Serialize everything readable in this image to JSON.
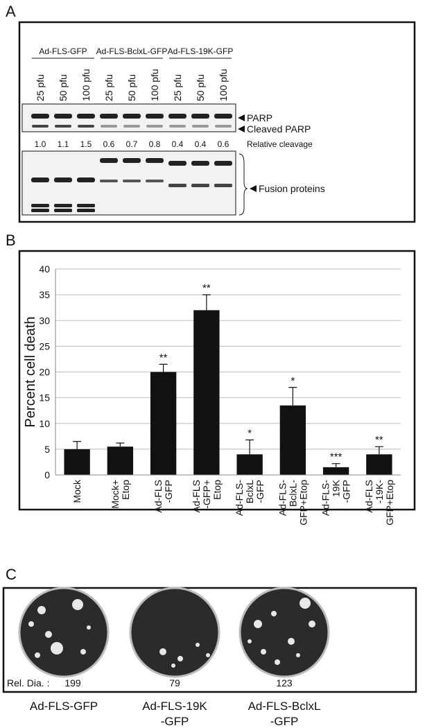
{
  "panel_a": {
    "label": "A",
    "groups": [
      "Ad-FLS-GFP",
      "Ad-FLS-BclxL-GFP",
      "Ad-FLS-19K-GFP"
    ],
    "lanes": [
      "25 pfu",
      "50 pfu",
      "100 pfu",
      "25 pfu",
      "50 pfu",
      "100 pfu",
      "25 pfu",
      "50 pfu",
      "100 pfu"
    ],
    "band_labels": [
      "PARP",
      "Cleaved PARP"
    ],
    "relative_cleavage": [
      "1.0",
      "1.1",
      "1.5",
      "0.6",
      "0.7",
      "0.8",
      "0.4",
      "0.4",
      "0.6"
    ],
    "relative_cleavage_label": "Relative cleavage",
    "fusion_label": "Fusion proteins"
  },
  "chart_data": {
    "type": "bar",
    "panel_label": "B",
    "y_label": "Percent cell death",
    "categories": [
      [
        "Mock"
      ],
      [
        "Mock+",
        "Etop"
      ],
      [
        "Ad-FLS",
        "-GFP"
      ],
      [
        "Ad-FLS",
        "-GFP+",
        "Etop"
      ],
      [
        "Ad-FLS-",
        "BclxL",
        "-GFP"
      ],
      [
        "Ad-FLS-",
        "BclxL-",
        "GFP+Etop"
      ],
      [
        "Ad-FLS-",
        "19K",
        "-GFP"
      ],
      [
        "Ad-FLS",
        "-19K-",
        "GFP+Etop"
      ]
    ],
    "values": [
      5,
      5.5,
      20,
      32,
      4,
      13.5,
      1.5,
      4
    ],
    "errors": [
      1.5,
      0.7,
      1.5,
      3,
      2.8,
      3.5,
      0.7,
      1.5
    ],
    "annotations": [
      null,
      null,
      "**",
      "**",
      "*",
      "*",
      "***",
      "**"
    ],
    "color": "#111111",
    "ylim": [
      0,
      40
    ],
    "yticks": [
      0,
      5,
      10,
      15,
      20,
      25,
      30,
      35,
      40
    ],
    "grid": true
  },
  "panel_c": {
    "label": "C",
    "rel_dia_label": "Rel. Dia. :",
    "rel_dia": [
      "199",
      "79",
      "123"
    ],
    "plates": [
      [
        "Ad-FLS-GFP"
      ],
      [
        "Ad-FLS-19K",
        "-GFP"
      ],
      [
        "Ad-FLS-BclxL",
        "-GFP"
      ]
    ]
  }
}
